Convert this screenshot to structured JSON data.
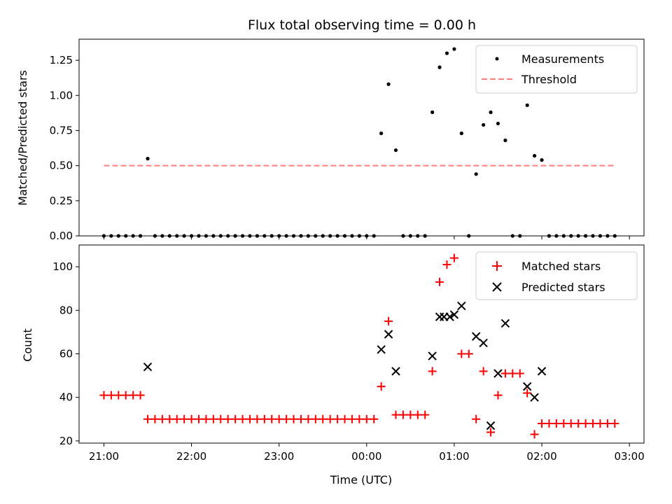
{
  "chart_data": [
    {
      "type": "scatter",
      "title": "Flux total observing time = 0.00 h",
      "xlabel": "",
      "ylabel": "Matched/Predicted stars",
      "ylim": [
        0,
        1.4
      ],
      "yticks": [
        "0.00",
        "0.25",
        "0.50",
        "0.75",
        "1.00",
        "1.25"
      ],
      "ytick_values": [
        0,
        0.25,
        0.5,
        0.75,
        1.0,
        1.25
      ],
      "legend": {
        "placement": "top-right",
        "entries": [
          "Measurements",
          "Threshold"
        ]
      },
      "threshold": {
        "name": "Threshold",
        "y": 0.5,
        "x_range": [
          "21:00",
          "02:50"
        ],
        "color": "#ff7f7f"
      },
      "series": [
        {
          "name": "Measurements",
          "color": "#000000",
          "points": [
            [
              "21:00",
              0
            ],
            [
              "21:05",
              0
            ],
            [
              "21:10",
              0
            ],
            [
              "21:15",
              0
            ],
            [
              "21:20",
              0
            ],
            [
              "21:25",
              0
            ],
            [
              "21:30",
              0.55
            ],
            [
              "21:35",
              0
            ],
            [
              "21:40",
              0
            ],
            [
              "21:45",
              0
            ],
            [
              "21:50",
              0
            ],
            [
              "21:55",
              0
            ],
            [
              "22:00",
              0
            ],
            [
              "22:05",
              0
            ],
            [
              "22:10",
              0
            ],
            [
              "22:15",
              0
            ],
            [
              "22:20",
              0
            ],
            [
              "22:25",
              0
            ],
            [
              "22:30",
              0
            ],
            [
              "22:35",
              0
            ],
            [
              "22:40",
              0
            ],
            [
              "22:45",
              0
            ],
            [
              "22:50",
              0
            ],
            [
              "22:55",
              0
            ],
            [
              "23:00",
              0
            ],
            [
              "23:05",
              0
            ],
            [
              "23:10",
              0
            ],
            [
              "23:15",
              0
            ],
            [
              "23:20",
              0
            ],
            [
              "23:25",
              0
            ],
            [
              "23:30",
              0
            ],
            [
              "23:35",
              0
            ],
            [
              "23:40",
              0
            ],
            [
              "23:45",
              0
            ],
            [
              "23:50",
              0
            ],
            [
              "23:55",
              0
            ],
            [
              "00:00",
              0
            ],
            [
              "00:05",
              0
            ],
            [
              "00:10",
              0.73
            ],
            [
              "00:15",
              1.08
            ],
            [
              "00:20",
              0.61
            ],
            [
              "00:25",
              0
            ],
            [
              "00:30",
              0
            ],
            [
              "00:35",
              0
            ],
            [
              "00:40",
              0
            ],
            [
              "00:45",
              0.88
            ],
            [
              "00:50",
              1.2
            ],
            [
              "00:55",
              1.3
            ],
            [
              "01:00",
              1.33
            ],
            [
              "01:05",
              0.73
            ],
            [
              "01:10",
              0
            ],
            [
              "01:15",
              0.44
            ],
            [
              "01:20",
              0.79
            ],
            [
              "01:25",
              0.88
            ],
            [
              "01:30",
              0.8
            ],
            [
              "01:35",
              0.68
            ],
            [
              "01:40",
              0
            ],
            [
              "01:45",
              0
            ],
            [
              "01:50",
              0.93
            ],
            [
              "01:55",
              0.57
            ],
            [
              "02:00",
              0.54
            ],
            [
              "02:05",
              0
            ],
            [
              "02:10",
              0
            ],
            [
              "02:15",
              0
            ],
            [
              "02:20",
              0
            ],
            [
              "02:25",
              0
            ],
            [
              "02:30",
              0
            ],
            [
              "02:35",
              0
            ],
            [
              "02:40",
              0
            ],
            [
              "02:45",
              0
            ],
            [
              "02:50",
              0
            ]
          ]
        }
      ]
    },
    {
      "type": "scatter",
      "title": "",
      "xlabel": "Time (UTC)",
      "ylabel": "Count",
      "ylim": [
        19,
        110
      ],
      "yticks": [
        "20",
        "40",
        "60",
        "80",
        "100"
      ],
      "ytick_values": [
        20,
        40,
        60,
        80,
        100
      ],
      "xticks": [
        "21:00",
        "22:00",
        "23:00",
        "00:00",
        "01:00",
        "02:00",
        "03:00"
      ],
      "xlim": [
        "20:43",
        "03:10"
      ],
      "legend": {
        "placement": "top-right",
        "entries": [
          "Matched stars",
          "Predicted stars"
        ]
      },
      "series": [
        {
          "name": "Matched stars",
          "color": "#ff0000",
          "marker": "plus",
          "points": [
            [
              "21:00",
              41
            ],
            [
              "21:05",
              41
            ],
            [
              "21:10",
              41
            ],
            [
              "21:15",
              41
            ],
            [
              "21:20",
              41
            ],
            [
              "21:25",
              41
            ],
            [
              "21:30",
              30
            ],
            [
              "21:35",
              30
            ],
            [
              "21:40",
              30
            ],
            [
              "21:45",
              30
            ],
            [
              "21:50",
              30
            ],
            [
              "21:55",
              30
            ],
            [
              "22:00",
              30
            ],
            [
              "22:05",
              30
            ],
            [
              "22:10",
              30
            ],
            [
              "22:15",
              30
            ],
            [
              "22:20",
              30
            ],
            [
              "22:25",
              30
            ],
            [
              "22:30",
              30
            ],
            [
              "22:35",
              30
            ],
            [
              "22:40",
              30
            ],
            [
              "22:45",
              30
            ],
            [
              "22:50",
              30
            ],
            [
              "22:55",
              30
            ],
            [
              "23:00",
              30
            ],
            [
              "23:05",
              30
            ],
            [
              "23:10",
              30
            ],
            [
              "23:15",
              30
            ],
            [
              "23:20",
              30
            ],
            [
              "23:25",
              30
            ],
            [
              "23:30",
              30
            ],
            [
              "23:35",
              30
            ],
            [
              "23:40",
              30
            ],
            [
              "23:45",
              30
            ],
            [
              "23:50",
              30
            ],
            [
              "23:55",
              30
            ],
            [
              "00:00",
              30
            ],
            [
              "00:05",
              30
            ],
            [
              "00:10",
              45
            ],
            [
              "00:15",
              75
            ],
            [
              "00:20",
              32
            ],
            [
              "00:25",
              32
            ],
            [
              "00:30",
              32
            ],
            [
              "00:35",
              32
            ],
            [
              "00:40",
              32
            ],
            [
              "00:45",
              52
            ],
            [
              "00:50",
              93
            ],
            [
              "00:55",
              101
            ],
            [
              "01:00",
              104
            ],
            [
              "01:05",
              60
            ],
            [
              "01:10",
              60
            ],
            [
              "01:15",
              30
            ],
            [
              "01:20",
              52
            ],
            [
              "01:25",
              24
            ],
            [
              "01:30",
              41
            ],
            [
              "01:35",
              51
            ],
            [
              "01:40",
              51
            ],
            [
              "01:45",
              51
            ],
            [
              "01:50",
              42
            ],
            [
              "01:55",
              23
            ],
            [
              "02:00",
              28
            ],
            [
              "02:05",
              28
            ],
            [
              "02:10",
              28
            ],
            [
              "02:15",
              28
            ],
            [
              "02:20",
              28
            ],
            [
              "02:25",
              28
            ],
            [
              "02:30",
              28
            ],
            [
              "02:35",
              28
            ],
            [
              "02:40",
              28
            ],
            [
              "02:45",
              28
            ],
            [
              "02:50",
              28
            ]
          ]
        },
        {
          "name": "Predicted stars",
          "color": "#000000",
          "marker": "x",
          "points": [
            [
              "21:30",
              54
            ],
            [
              "00:10",
              62
            ],
            [
              "00:15",
              69
            ],
            [
              "00:20",
              52
            ],
            [
              "00:45",
              59
            ],
            [
              "00:50",
              77
            ],
            [
              "00:53",
              77
            ],
            [
              "00:57",
              77
            ],
            [
              "01:00",
              78
            ],
            [
              "01:05",
              82
            ],
            [
              "01:15",
              68
            ],
            [
              "01:20",
              65
            ],
            [
              "01:25",
              27
            ],
            [
              "01:30",
              51
            ],
            [
              "01:35",
              74
            ],
            [
              "01:50",
              45
            ],
            [
              "01:55",
              40
            ],
            [
              "02:00",
              52
            ]
          ]
        }
      ]
    }
  ]
}
